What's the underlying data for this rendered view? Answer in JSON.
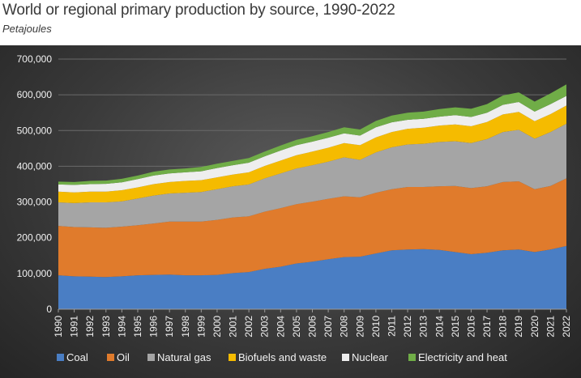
{
  "title": "World or regional primary production by source, 1990-2022",
  "subtitle": "Petajoules",
  "chart_data": {
    "type": "area",
    "stacked": true,
    "title": "World or regional primary production by source, 1990-2022",
    "subtitle": "Petajoules",
    "x": [
      "1990",
      "1991",
      "1992",
      "1993",
      "1994",
      "1995",
      "1996",
      "1997",
      "1998",
      "1999",
      "2000",
      "2001",
      "2002",
      "2003",
      "2004",
      "2005",
      "2006",
      "2007",
      "2008",
      "2009",
      "2010",
      "2011",
      "2012",
      "2013",
      "2014",
      "2015",
      "2016",
      "2017",
      "2018",
      "2019",
      "2020",
      "2021",
      "2022"
    ],
    "ylim": [
      0,
      700000
    ],
    "y_ticks": [
      "0",
      "100,000",
      "200,000",
      "300,000",
      "400,000",
      "500,000",
      "600,000",
      "700,000"
    ],
    "grid": true,
    "legend_position": "bottom",
    "series": [
      {
        "name": "Coal",
        "color": "#4a7ec4",
        "values": [
          95000,
          92000,
          91000,
          90000,
          92000,
          95000,
          96000,
          97000,
          95000,
          95000,
          96000,
          101000,
          104000,
          113000,
          119000,
          128000,
          133000,
          140000,
          146000,
          147000,
          156000,
          165000,
          167000,
          168000,
          166000,
          160000,
          154000,
          158000,
          165000,
          167000,
          160000,
          167000,
          177000
        ]
      },
      {
        "name": "Oil",
        "color": "#e07b2c",
        "values": [
          138000,
          138000,
          138000,
          138000,
          139000,
          140000,
          144000,
          148000,
          150000,
          150000,
          154000,
          156000,
          156000,
          160000,
          164000,
          166000,
          168000,
          169000,
          170000,
          166000,
          170000,
          171000,
          175000,
          174000,
          178000,
          185000,
          185000,
          186000,
          191000,
          191000,
          176000,
          178000,
          189000
        ]
      },
      {
        "name": "Natural gas",
        "color": "#a5a5a5",
        "values": [
          66000,
          67000,
          70000,
          71000,
          71000,
          75000,
          78000,
          79000,
          81000,
          83000,
          86000,
          87000,
          89000,
          93000,
          97000,
          100000,
          102000,
          104000,
          109000,
          105000,
          113000,
          117000,
          119000,
          121000,
          124000,
          125000,
          126000,
          132000,
          140000,
          144000,
          141000,
          151000,
          153000
        ]
      },
      {
        "name": "Biofuels and waste",
        "color": "#f5bb00",
        "values": [
          30000,
          30000,
          30000,
          30000,
          31000,
          31000,
          32000,
          32000,
          33000,
          33000,
          33000,
          33000,
          34000,
          35000,
          36000,
          37000,
          38000,
          39000,
          40000,
          41000,
          42000,
          43000,
          44000,
          45000,
          46000,
          47000,
          47000,
          48000,
          49000,
          50000,
          49000,
          50000,
          51000
        ]
      },
      {
        "name": "Nuclear",
        "color": "#eeeeee",
        "values": [
          20000,
          21000,
          21000,
          22000,
          22000,
          23000,
          24000,
          24000,
          24000,
          25000,
          26000,
          26000,
          27000,
          27000,
          28000,
          28000,
          28000,
          28000,
          27000,
          27000,
          28000,
          27000,
          25000,
          25000,
          25000,
          26000,
          26000,
          26000,
          27000,
          28000,
          27000,
          28000,
          27000
        ]
      },
      {
        "name": "Electricity and heat",
        "color": "#70ad47",
        "values": [
          8000,
          8000,
          9000,
          9000,
          10000,
          10000,
          11000,
          11000,
          11000,
          12000,
          12000,
          12000,
          13000,
          13000,
          14000,
          15000,
          15000,
          16000,
          17000,
          17000,
          18000,
          19000,
          20000,
          20000,
          21000,
          22000,
          23000,
          24000,
          26000,
          27000,
          28000,
          30000,
          32000
        ]
      }
    ]
  }
}
